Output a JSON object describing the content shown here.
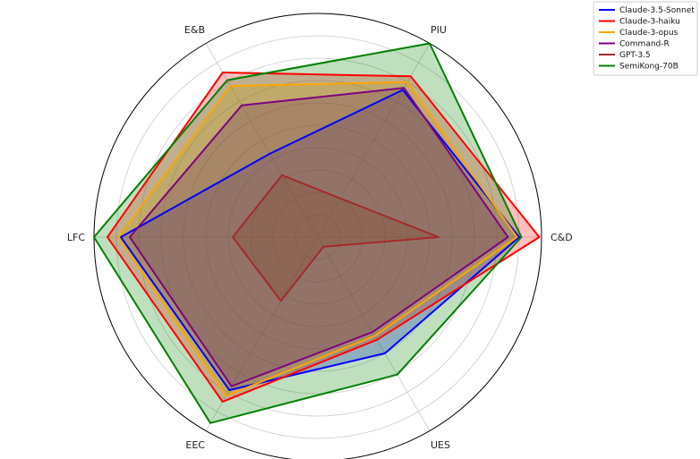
{
  "chart_data": {
    "type": "radar",
    "axes": [
      "C&D",
      "PIU",
      "E&B",
      "LFC",
      "EEC",
      "UES"
    ],
    "rlim": [
      0,
      5
    ],
    "rings": [
      0.5,
      1,
      1.5,
      2,
      2.5,
      3,
      3.5,
      4,
      4.5
    ],
    "grid": true,
    "legend_position": "top-right",
    "series": [
      {
        "name": "Claude-3.5-Sonnet",
        "color": "#0000ff",
        "values": [
          4.5,
          3.8,
          2.15,
          4.4,
          3.95,
          3.0
        ]
      },
      {
        "name": "Claude-3-haiku",
        "color": "#ff0000",
        "values": [
          4.95,
          4.15,
          4.25,
          4.7,
          4.25,
          2.65
        ]
      },
      {
        "name": "Claude-3-opus",
        "color": "#ffa500",
        "values": [
          4.45,
          4.0,
          3.9,
          4.45,
          4.1,
          2.55
        ]
      },
      {
        "name": "Command-R",
        "color": "#800080",
        "values": [
          4.25,
          3.85,
          3.4,
          4.2,
          3.85,
          2.45
        ]
      },
      {
        "name": "GPT-3.5",
        "color": "#a52a2a",
        "values": [
          2.7,
          1.0,
          1.6,
          1.9,
          1.65,
          0.25
        ]
      },
      {
        "name": "SemiKong-70B",
        "color": "#008000",
        "values": [
          4.55,
          5.0,
          4.05,
          5.0,
          4.8,
          3.55
        ]
      }
    ]
  }
}
